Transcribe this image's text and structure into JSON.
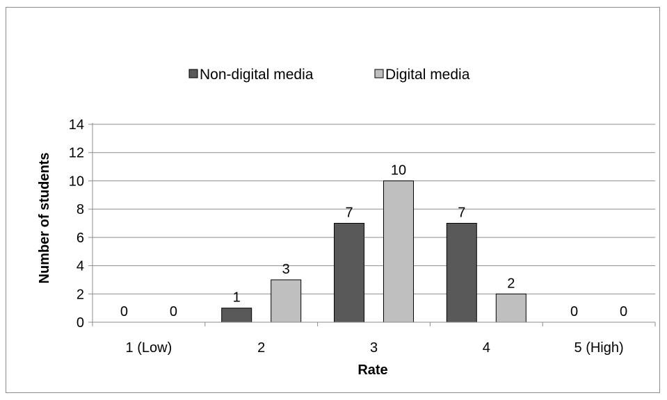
{
  "chart_data": {
    "type": "bar",
    "title": "",
    "xlabel": "Rate",
    "ylabel": "Number of students",
    "categories": [
      "1 (Low)",
      "2",
      "3",
      "4",
      "5 (High)"
    ],
    "series": [
      {
        "name": "Non-digital media",
        "values": [
          0,
          1,
          7,
          7,
          0
        ],
        "color": "#595959"
      },
      {
        "name": "Digital media",
        "values": [
          0,
          3,
          10,
          2,
          0
        ],
        "color": "#bfbfbf"
      }
    ],
    "ylim": [
      0,
      14
    ],
    "yticks": [
      0,
      2,
      4,
      6,
      8,
      10,
      12,
      14
    ],
    "grid": true,
    "legend_position": "top",
    "data_labels": true
  }
}
